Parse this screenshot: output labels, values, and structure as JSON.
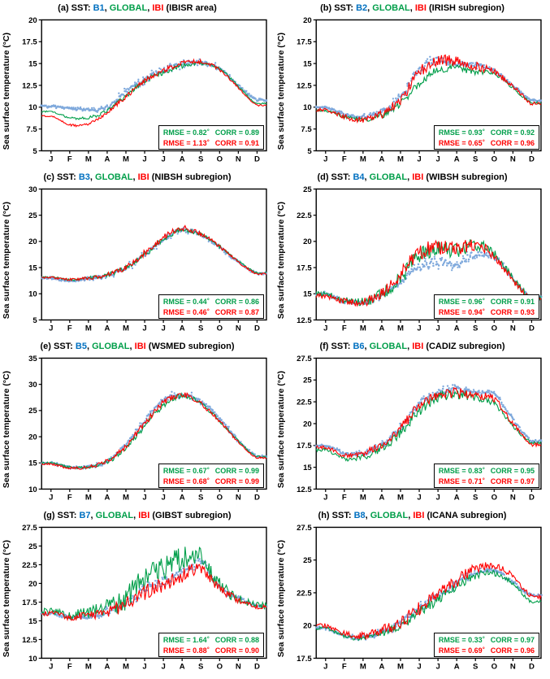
{
  "figure": {
    "ylabel": "Sea surface temperature (°C)",
    "sep": ",",
    "rmse_label": "RMSE = ",
    "corr_label": "CORR = ",
    "deg": "°",
    "colors": {
      "buoy_dots": "#7FA9DC",
      "buoy_title": "#0070C0",
      "global": "#009E49",
      "ibi": "#FF0000",
      "axis": "#000000"
    }
  },
  "chart_data": [
    {
      "type": "line",
      "panel_title": "(a) SST:",
      "buoy_label": "B1",
      "global_label": "GLOBAL",
      "ibi_label": "IBI",
      "region": "(IBISR area)",
      "ylabel": "Sea surface temperature (°C)",
      "months": [
        "J",
        "F",
        "M",
        "A",
        "M",
        "J",
        "J",
        "A",
        "S",
        "O",
        "N",
        "D"
      ],
      "ylim": [
        5,
        20
      ],
      "yticks": [
        5,
        7.5,
        10,
        12.5,
        15,
        17.5,
        20
      ],
      "series": [
        {
          "name": "B1 buoy",
          "style": "dots",
          "color": "#7FA9DC",
          "jitter": 0.16,
          "monthly_values": [
            10.1,
            9.9,
            9.7,
            10.0,
            11.8,
            13.2,
            14.3,
            14.9,
            15.1,
            14.4,
            12.5,
            10.8
          ]
        },
        {
          "name": "GLOBAL",
          "style": "line",
          "color": "#009E49",
          "jitter": 0.2,
          "monthly_values": [
            9.5,
            8.8,
            8.8,
            9.6,
            11.3,
            13.0,
            14.0,
            14.7,
            15.0,
            14.4,
            12.4,
            10.4
          ]
        },
        {
          "name": "IBI",
          "style": "line",
          "color": "#FF0000",
          "jitter": 0.2,
          "monthly_values": [
            9.0,
            8.0,
            8.1,
            9.4,
            11.2,
            13.0,
            14.2,
            15.0,
            15.2,
            14.3,
            12.2,
            10.2
          ]
        }
      ],
      "stats": {
        "rmse_global": "0.82",
        "corr_global": "0.89",
        "rmse_ibi": "1.13",
        "corr_ibi": "0.91"
      }
    },
    {
      "type": "line",
      "panel_title": "(b) SST:",
      "buoy_label": "B2",
      "global_label": "GLOBAL",
      "ibi_label": "IBI",
      "region": "(IRISH subregion)",
      "ylabel": "Sea surface temperature (°C)",
      "months": [
        "J",
        "F",
        "M",
        "A",
        "M",
        "J",
        "J",
        "A",
        "S",
        "O",
        "N",
        "D"
      ],
      "ylim": [
        5,
        20
      ],
      "yticks": [
        5,
        7.5,
        10,
        12.5,
        15,
        17.5,
        20
      ],
      "series": [
        {
          "name": "B2 buoy",
          "style": "dots",
          "color": "#7FA9DC",
          "jitter": 0.2,
          "monthly_values": [
            10.0,
            9.2,
            8.9,
            9.4,
            11.2,
            14.2,
            15.4,
            15.0,
            14.8,
            14.1,
            12.5,
            10.8
          ]
        },
        {
          "name": "GLOBAL",
          "style": "line",
          "color": "#009E49",
          "jitter": 0.3,
          "monthly_values": [
            9.6,
            8.9,
            8.6,
            9.0,
            10.4,
            12.8,
            14.2,
            14.5,
            14.0,
            13.8,
            12.2,
            10.5
          ]
        },
        {
          "name": "IBI",
          "style": "line",
          "color": "#FF0000",
          "jitter": 0.45,
          "monthly_values": [
            9.7,
            8.9,
            8.6,
            9.2,
            10.9,
            14.0,
            15.3,
            15.2,
            14.7,
            14.0,
            12.4,
            10.4
          ]
        }
      ],
      "stats": {
        "rmse_global": "0.93",
        "corr_global": "0.92",
        "rmse_ibi": "0.65",
        "corr_ibi": "0.96"
      }
    },
    {
      "type": "line",
      "panel_title": "(c) SST:",
      "buoy_label": "B3",
      "global_label": "GLOBAL",
      "ibi_label": "IBI",
      "region": "(NIBSH subregion)",
      "ylabel": "Sea surface temperature (°C)",
      "months": [
        "J",
        "F",
        "M",
        "A",
        "M",
        "J",
        "J",
        "A",
        "S",
        "O",
        "N",
        "D"
      ],
      "ylim": [
        5,
        30
      ],
      "yticks": [
        5,
        10,
        15,
        20,
        25,
        30
      ],
      "series": [
        {
          "name": "B3 buoy",
          "style": "dots",
          "color": "#7FA9DC",
          "jitter": 0.2,
          "monthly_values": [
            13.0,
            12.4,
            12.9,
            13.5,
            14.9,
            17.4,
            20.3,
            22.1,
            21.2,
            18.9,
            16.1,
            13.9
          ]
        },
        {
          "name": "GLOBAL",
          "style": "line",
          "color": "#009E49",
          "jitter": 0.35,
          "monthly_values": [
            13.2,
            12.7,
            13.0,
            13.6,
            15.0,
            17.5,
            20.4,
            22.2,
            21.3,
            19.0,
            16.2,
            14.0
          ]
        },
        {
          "name": "IBI",
          "style": "line",
          "color": "#FF0000",
          "jitter": 0.4,
          "monthly_values": [
            13.1,
            12.7,
            13.0,
            13.6,
            15.1,
            17.8,
            20.8,
            22.5,
            21.4,
            19.0,
            16.1,
            13.8
          ]
        }
      ],
      "stats": {
        "rmse_global": "0.44",
        "corr_global": "0.86",
        "rmse_ibi": "0.46",
        "corr_ibi": "0.87"
      }
    },
    {
      "type": "line",
      "panel_title": "(d) SST:",
      "buoy_label": "B4",
      "global_label": "GLOBAL",
      "ibi_label": "IBI",
      "region": "(WIBSH subregion)",
      "ylabel": "Sea surface temperature (°C)",
      "months": [
        "J",
        "F",
        "M",
        "A",
        "M",
        "J",
        "J",
        "A",
        "S",
        "O",
        "N",
        "D"
      ],
      "ylim": [
        12.5,
        25
      ],
      "yticks": [
        12.5,
        15,
        17.5,
        20,
        22.5,
        25
      ],
      "series": [
        {
          "name": "B4 buoy",
          "style": "dots",
          "color": "#7FA9DC",
          "jitter": 0.25,
          "monthly_values": [
            15.0,
            14.3,
            14.2,
            14.9,
            16.2,
            17.6,
            18.0,
            17.8,
            18.8,
            18.5,
            16.4,
            14.6
          ]
        },
        {
          "name": "GLOBAL",
          "style": "line",
          "color": "#009E49",
          "jitter": 0.5,
          "monthly_values": [
            15.0,
            14.4,
            14.2,
            15.0,
            16.5,
            18.6,
            19.4,
            19.1,
            19.7,
            18.8,
            16.5,
            14.6
          ]
        },
        {
          "name": "IBI",
          "style": "line",
          "color": "#FF0000",
          "jitter": 0.5,
          "monthly_values": [
            14.8,
            14.3,
            14.2,
            15.0,
            16.8,
            18.9,
            19.3,
            19.4,
            19.6,
            18.6,
            16.3,
            14.4
          ]
        }
      ],
      "stats": {
        "rmse_global": "0.96",
        "corr_global": "0.91",
        "rmse_ibi": "0.94",
        "corr_ibi": "0.93"
      }
    },
    {
      "type": "line",
      "panel_title": "(e) SST:",
      "buoy_label": "B5",
      "global_label": "GLOBAL",
      "ibi_label": "IBI",
      "region": "(WSMED subregion)",
      "ylabel": "Sea surface temperature (°C)",
      "months": [
        "J",
        "F",
        "M",
        "A",
        "M",
        "J",
        "J",
        "A",
        "S",
        "O",
        "N",
        "D"
      ],
      "ylim": [
        10,
        35
      ],
      "yticks": [
        10,
        15,
        20,
        25,
        30,
        35
      ],
      "series": [
        {
          "name": "B5 buoy",
          "style": "dots",
          "color": "#7FA9DC",
          "jitter": 0.2,
          "monthly_values": [
            15.0,
            14.2,
            14.2,
            15.3,
            18.5,
            23.0,
            27.0,
            28.0,
            26.8,
            23.5,
            19.2,
            16.2
          ]
        },
        {
          "name": "GLOBAL",
          "style": "line",
          "color": "#009E49",
          "jitter": 0.35,
          "monthly_values": [
            15.0,
            14.2,
            14.2,
            15.2,
            17.8,
            22.0,
            26.0,
            27.8,
            26.3,
            23.0,
            19.2,
            16.2
          ]
        },
        {
          "name": "IBI",
          "style": "line",
          "color": "#FF0000",
          "jitter": 0.4,
          "monthly_values": [
            14.8,
            14.0,
            14.2,
            15.4,
            18.2,
            22.5,
            26.5,
            28.0,
            26.3,
            23.0,
            19.0,
            16.0
          ]
        }
      ],
      "stats": {
        "rmse_global": "0.67",
        "corr_global": "0.99",
        "rmse_ibi": "0.68",
        "corr_ibi": "0.99"
      }
    },
    {
      "type": "line",
      "panel_title": "(f) SST:",
      "buoy_label": "B6",
      "global_label": "GLOBAL",
      "ibi_label": "IBI",
      "region": "(CADIZ subregion)",
      "ylabel": "Sea surface temperature (°C)",
      "months": [
        "J",
        "F",
        "M",
        "A",
        "M",
        "J",
        "J",
        "A",
        "S",
        "O",
        "N",
        "D"
      ],
      "ylim": [
        12.5,
        27.5
      ],
      "yticks": [
        12.5,
        15,
        17.5,
        20,
        22.5,
        25,
        27.5
      ],
      "series": [
        {
          "name": "B6 buoy",
          "style": "dots",
          "color": "#7FA9DC",
          "jitter": 0.25,
          "monthly_values": [
            17.5,
            16.6,
            16.6,
            17.6,
            19.5,
            22.2,
            23.5,
            24.0,
            23.5,
            23.3,
            20.5,
            18.0
          ]
        },
        {
          "name": "GLOBAL",
          "style": "line",
          "color": "#009E49",
          "jitter": 0.4,
          "monthly_values": [
            17.0,
            16.0,
            16.2,
            17.2,
            19.0,
            21.5,
            23.0,
            23.3,
            23.0,
            22.3,
            19.8,
            17.8
          ]
        },
        {
          "name": "IBI",
          "style": "line",
          "color": "#FF0000",
          "jitter": 0.45,
          "monthly_values": [
            17.3,
            16.4,
            16.6,
            17.6,
            19.5,
            22.0,
            23.3,
            23.5,
            23.2,
            22.8,
            20.0,
            17.6
          ]
        }
      ],
      "stats": {
        "rmse_global": "0.83",
        "corr_global": "0.95",
        "rmse_ibi": "0.71",
        "corr_ibi": "0.97"
      }
    },
    {
      "type": "line",
      "panel_title": "(g) SST:",
      "buoy_label": "B7",
      "global_label": "GLOBAL",
      "ibi_label": "IBI",
      "region": "(GIBST subregion)",
      "ylabel": "Sea surface temperature (°C)",
      "months": [
        "J",
        "F",
        "M",
        "A",
        "M",
        "J",
        "J",
        "A",
        "S",
        "O",
        "N",
        "D"
      ],
      "ylim": [
        10,
        27.5
      ],
      "yticks": [
        10,
        12.5,
        15,
        17.5,
        20,
        22.5,
        25,
        27.5
      ],
      "series": [
        {
          "name": "B7 buoy",
          "style": "dots",
          "color": "#7FA9DC",
          "jitter": 0.4,
          "monthly_values": [
            16.0,
            15.4,
            15.7,
            16.2,
            17.3,
            19.2,
            20.2,
            21.5,
            22.8,
            19.5,
            18.0,
            17.0
          ]
        },
        {
          "name": "GLOBAL",
          "style": "line",
          "color": "#009E49",
          "jitter": 1.1,
          "monthly_values": [
            16.2,
            15.8,
            16.0,
            16.6,
            18.0,
            20.5,
            22.0,
            23.3,
            23.5,
            19.8,
            18.0,
            17.0
          ]
        },
        {
          "name": "IBI",
          "style": "line",
          "color": "#FF0000",
          "jitter": 0.7,
          "monthly_values": [
            16.0,
            15.5,
            15.8,
            16.2,
            17.2,
            18.8,
            19.8,
            21.0,
            22.0,
            19.3,
            17.8,
            16.8
          ]
        }
      ],
      "stats": {
        "rmse_global": "1.64",
        "corr_global": "0.88",
        "rmse_ibi": "0.88",
        "corr_ibi": "0.90"
      }
    },
    {
      "type": "line",
      "panel_title": "(h) SST:",
      "buoy_label": "B8",
      "global_label": "GLOBAL",
      "ibi_label": "IBI",
      "region": "(ICANA subregion)",
      "ylabel": "Sea surface temperature (°C)",
      "months": [
        "J",
        "F",
        "M",
        "A",
        "M",
        "J",
        "J",
        "A",
        "S",
        "O",
        "N",
        "D"
      ],
      "ylim": [
        17.5,
        27.5
      ],
      "yticks": [
        17.5,
        20,
        22.5,
        25,
        27.5
      ],
      "series": [
        {
          "name": "B8 buoy",
          "style": "dots",
          "color": "#7FA9DC",
          "jitter": 0.15,
          "monthly_values": [
            19.8,
            19.2,
            19.1,
            19.5,
            20.2,
            21.3,
            22.2,
            23.2,
            24.0,
            24.2,
            23.3,
            22.3
          ]
        },
        {
          "name": "GLOBAL",
          "style": "line",
          "color": "#009E49",
          "jitter": 0.25,
          "monthly_values": [
            19.8,
            19.2,
            19.0,
            19.4,
            20.0,
            21.0,
            22.0,
            23.0,
            23.8,
            24.0,
            23.2,
            21.8
          ]
        },
        {
          "name": "IBI",
          "style": "line",
          "color": "#FF0000",
          "jitter": 0.35,
          "monthly_values": [
            20.0,
            19.4,
            19.2,
            19.6,
            20.3,
            21.3,
            22.3,
            23.4,
            24.3,
            24.5,
            23.8,
            22.2
          ]
        }
      ],
      "stats": {
        "rmse_global": "0.33",
        "corr_global": "0.97",
        "rmse_ibi": "0.69",
        "corr_ibi": "0.96"
      }
    }
  ]
}
